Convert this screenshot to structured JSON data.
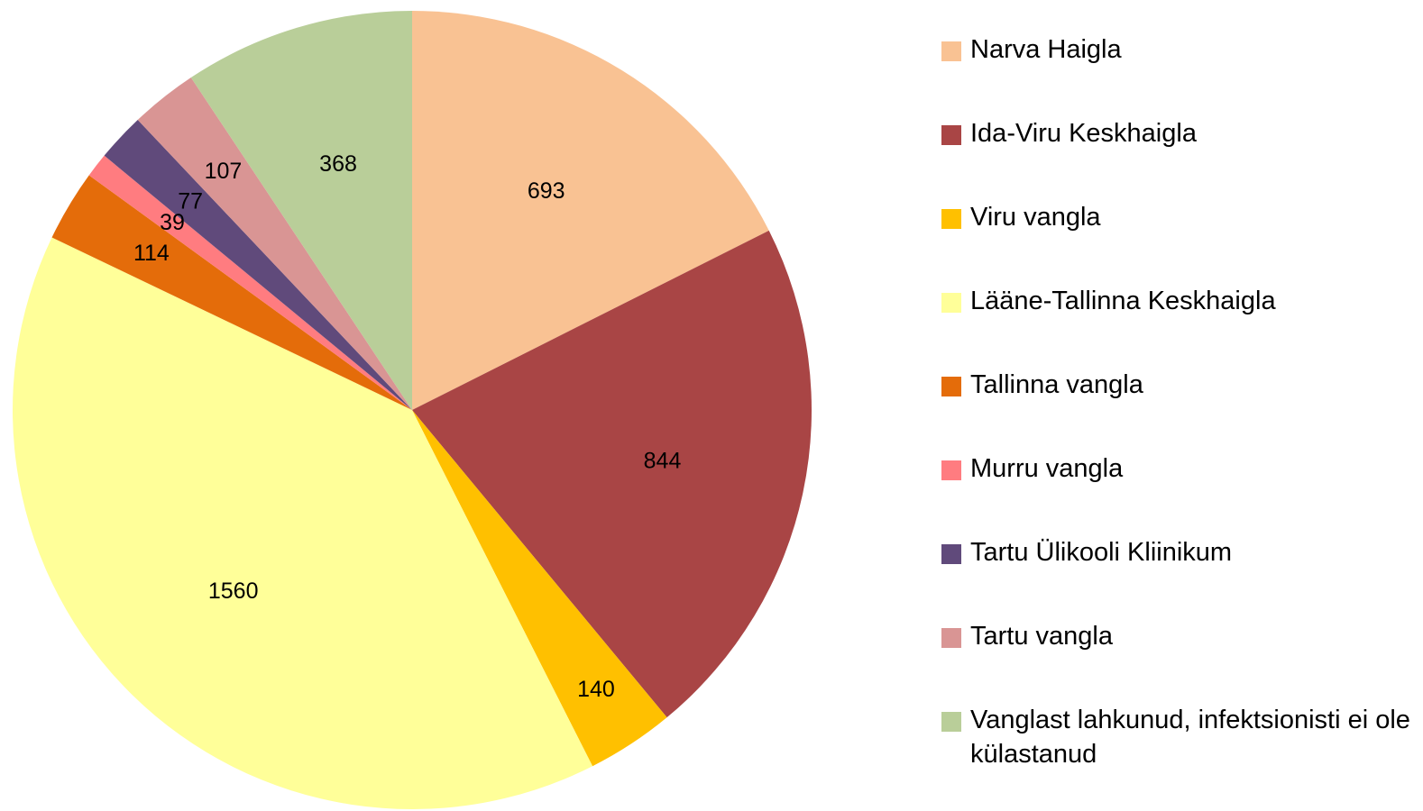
{
  "chart_data": {
    "type": "pie",
    "categories": [
      "Narva Haigla",
      "Ida-Viru Keskhaigla",
      "Viru vangla",
      "Lääne-Tallinna Keskhaigla",
      "Tallinna vangla",
      "Murru vangla",
      "Tartu Ülikooli Kliinikum",
      "Tartu vangla",
      "Vanglast lahkunud, infektsionisti ei ole külastanud"
    ],
    "values": [
      693,
      844,
      140,
      1560,
      114,
      39,
      77,
      107,
      368
    ],
    "colors": [
      "#F9C293",
      "#A94545",
      "#FFC000",
      "#FFFF99",
      "#E46C0A",
      "#FF7C80",
      "#604A7B",
      "#D99594",
      "#B9CE99"
    ],
    "legend": "right"
  }
}
